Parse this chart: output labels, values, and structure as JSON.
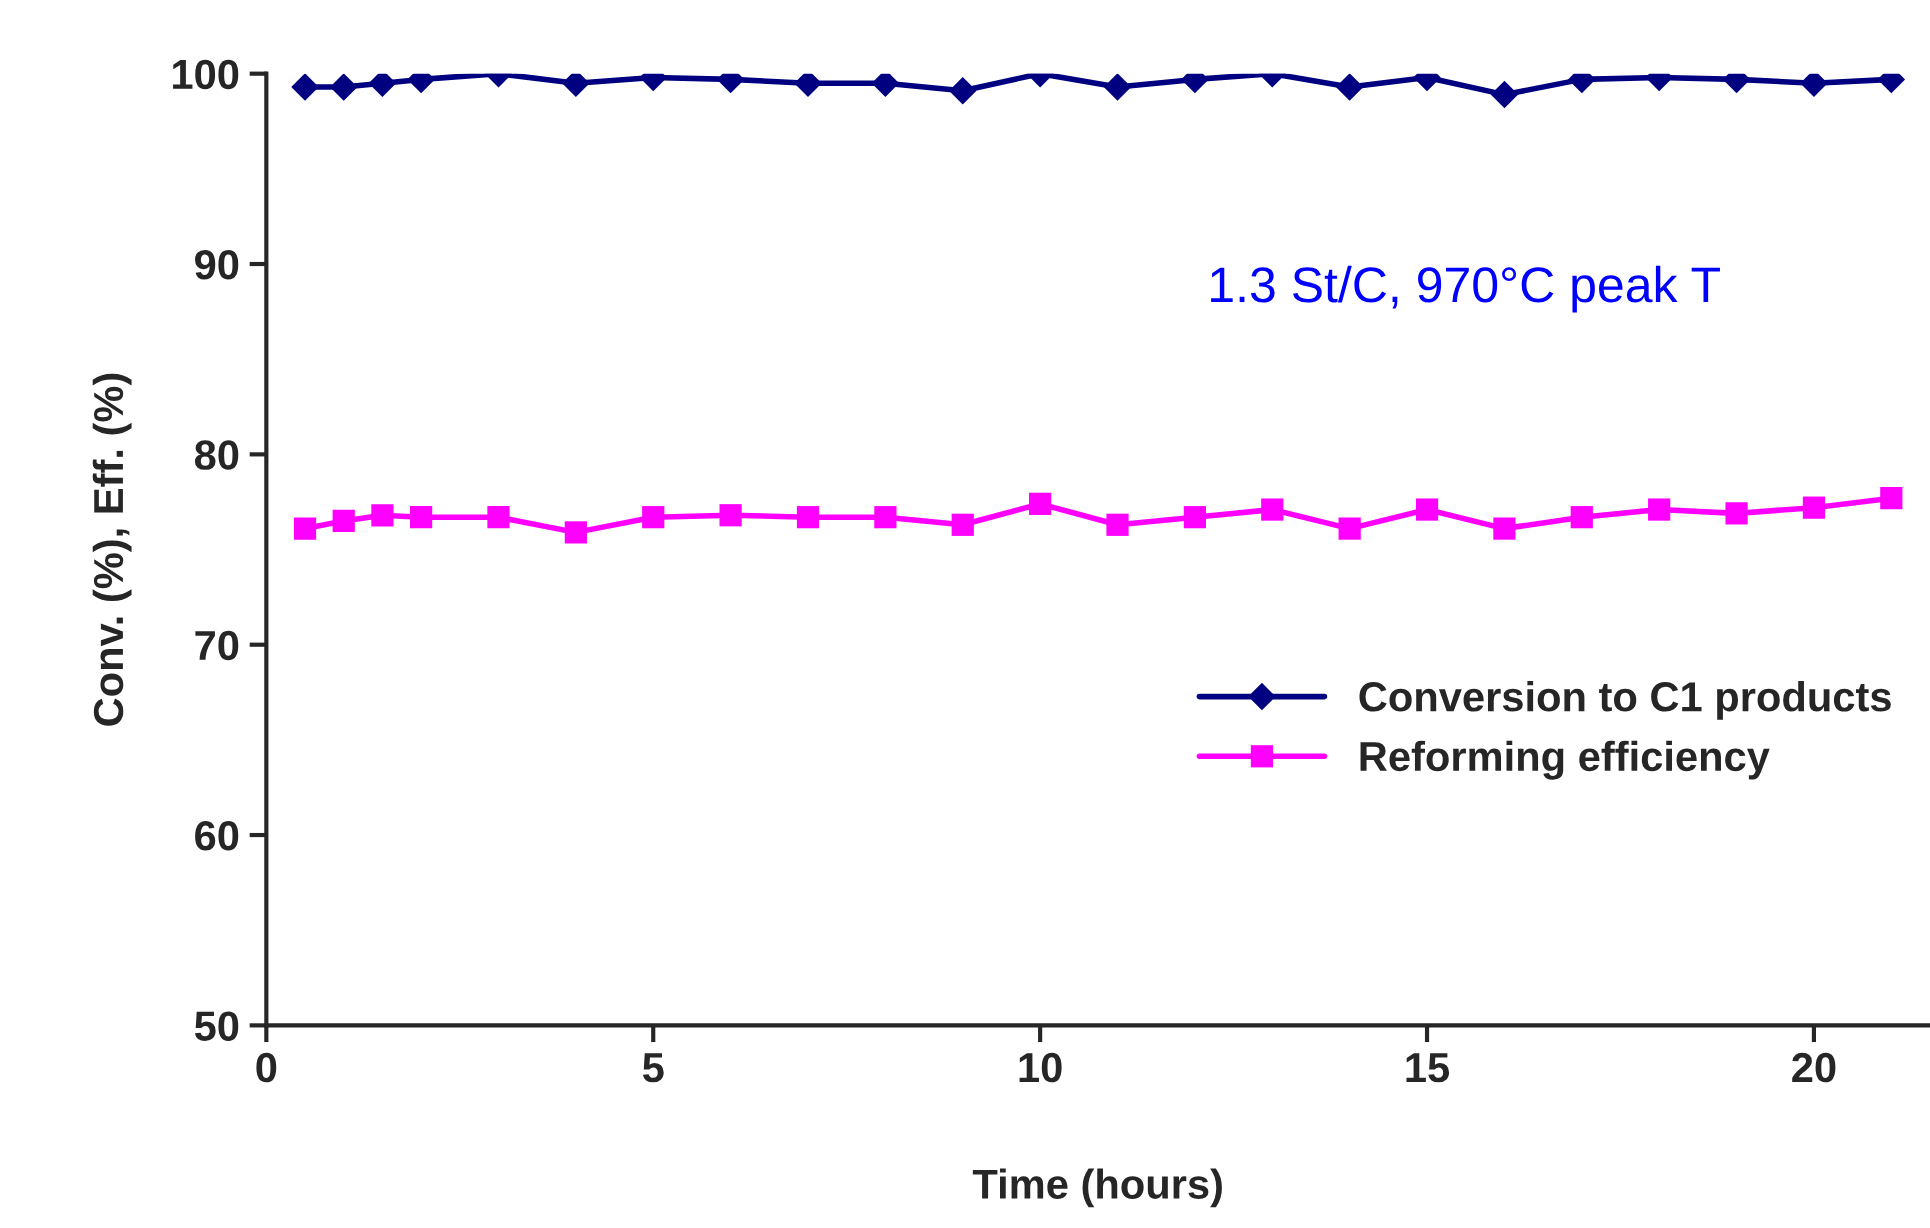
{
  "chart_data": {
    "type": "line",
    "xlabel": "Time (hours)",
    "ylabel": "Conv. (%), Eff. (%)",
    "x": [
      0.5,
      1,
      1.5,
      2,
      3,
      4,
      5,
      6,
      7,
      8,
      9,
      10,
      11,
      12,
      13,
      14,
      15,
      16,
      17,
      18,
      19,
      20,
      21
    ],
    "series": [
      {
        "name": "Conversion to C1 products",
        "color": "#000080",
        "marker": "diamond",
        "values": [
          99.3,
          99.3,
          99.5,
          99.7,
          100,
          99.5,
          99.8,
          99.7,
          99.5,
          99.5,
          99.1,
          100,
          99.3,
          99.7,
          100,
          99.3,
          99.8,
          98.9,
          99.7,
          99.8,
          99.7,
          99.5,
          99.7
        ]
      },
      {
        "name": "Reforming efficiency",
        "color": "#ff00ff",
        "marker": "square",
        "values": [
          76.1,
          76.5,
          76.8,
          76.7,
          76.7,
          75.9,
          76.7,
          76.8,
          76.7,
          76.7,
          76.3,
          77.4,
          76.3,
          76.7,
          77.1,
          76.1,
          77.1,
          76.1,
          76.7,
          77.1,
          76.9,
          77.2,
          77.7
        ]
      }
    ],
    "xlim": [
      0,
      21.5
    ],
    "xticks": [
      0,
      5,
      10,
      15,
      20
    ],
    "ylim": [
      50,
      100
    ],
    "yticks": [
      50,
      60,
      70,
      80,
      90,
      100
    ],
    "annotations": [
      "1.3 St/C, 970°C peak T"
    ],
    "grid": false,
    "legend": "right"
  }
}
